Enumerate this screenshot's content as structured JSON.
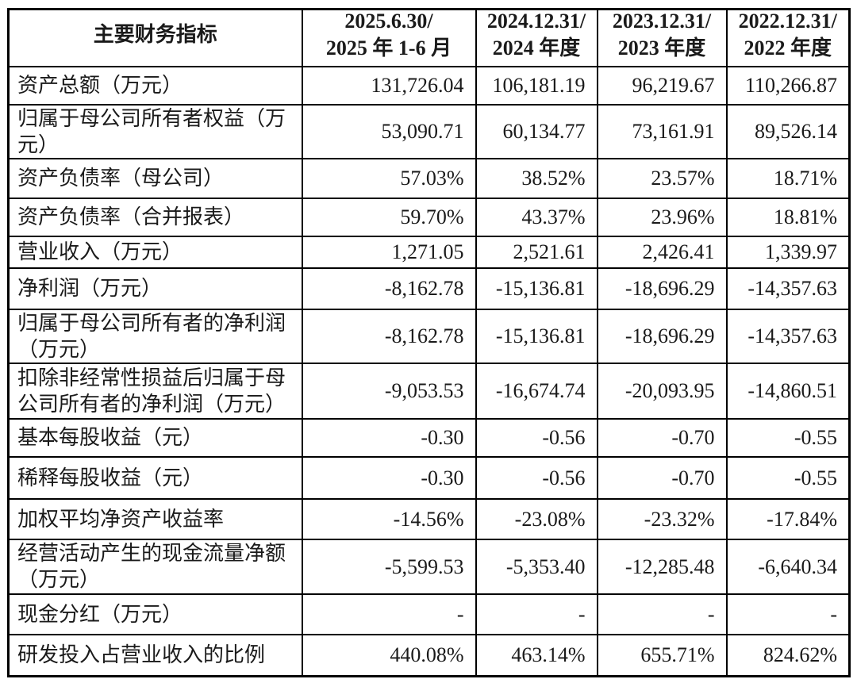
{
  "table": {
    "header": {
      "indicator": "主要财务指标",
      "periods": [
        {
          "line1": "2025.6.30/",
          "line2": "2025 年 1-6 月"
        },
        {
          "line1": "2024.12.31/",
          "line2": "2024 年度"
        },
        {
          "line1": "2023.12.31/",
          "line2": "2023 年度"
        },
        {
          "line1": "2022.12.31/",
          "line2": "2022 年度"
        }
      ]
    },
    "rows": [
      {
        "label": "资产总额（万元）",
        "values": [
          "131,726.04",
          "106,181.19",
          "96,219.67",
          "110,266.87"
        ]
      },
      {
        "label": "归属于母公司所有者权益（万元）",
        "values": [
          "53,090.71",
          "60,134.77",
          "73,161.91",
          "89,526.14"
        ]
      },
      {
        "label": "资产负债率（母公司）",
        "values": [
          "57.03%",
          "38.52%",
          "23.57%",
          "18.71%"
        ]
      },
      {
        "label": "资产负债率（合并报表）",
        "values": [
          "59.70%",
          "43.37%",
          "23.96%",
          "18.81%"
        ]
      },
      {
        "label": "营业收入（万元）",
        "values": [
          "1,271.05",
          "2,521.61",
          "2,426.41",
          "1,339.97"
        ]
      },
      {
        "label": "净利润（万元）",
        "values": [
          "-8,162.78",
          "-15,136.81",
          "-18,696.29",
          "-14,357.63"
        ]
      },
      {
        "label": "归属于母公司所有者的净利润（万元）",
        "values": [
          "-8,162.78",
          "-15,136.81",
          "-18,696.29",
          "-14,357.63"
        ]
      },
      {
        "label": "扣除非经常性损益后归属于母公司所有者的净利润（万元）",
        "values": [
          "-9,053.53",
          "-16,674.74",
          "-20,093.95",
          "-14,860.51"
        ]
      },
      {
        "label": "基本每股收益（元）",
        "values": [
          "-0.30",
          "-0.56",
          "-0.70",
          "-0.55"
        ]
      },
      {
        "label": "稀释每股收益（元）",
        "values": [
          "-0.30",
          "-0.56",
          "-0.70",
          "-0.55"
        ]
      },
      {
        "label": "加权平均净资产收益率",
        "values": [
          "-14.56%",
          "-23.08%",
          "-23.32%",
          "-17.84%"
        ]
      },
      {
        "label": "经营活动产生的现金流量净额（万元）",
        "values": [
          "-5,599.53",
          "-5,353.40",
          "-12,285.48",
          "-6,640.34"
        ]
      },
      {
        "label": "现金分红（万元）",
        "values": [
          "-",
          "-",
          "-",
          "-"
        ]
      },
      {
        "label": "研发投入占营业收入的比例",
        "values": [
          "440.08%",
          "463.14%",
          "655.71%",
          "824.62%"
        ]
      }
    ]
  }
}
